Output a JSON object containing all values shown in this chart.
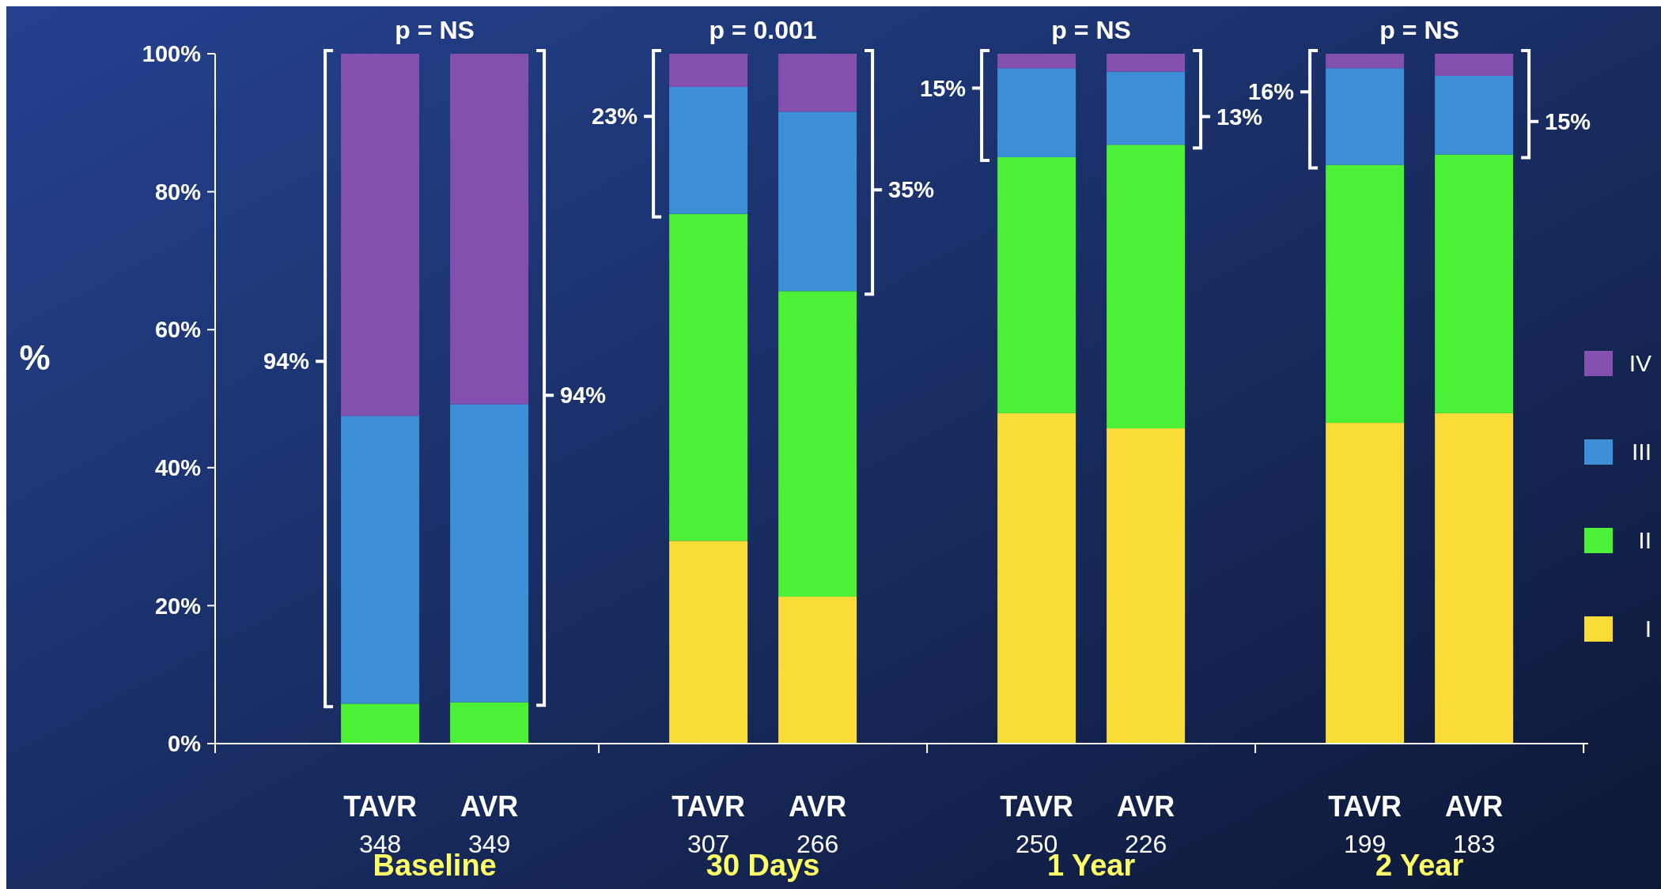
{
  "chart_data": {
    "type": "bar",
    "stacked": true,
    "ylabel": "%",
    "categories": [
      "TAVR 348",
      "AVR 349",
      "TAVR 307",
      "AVR 266",
      "TAVR 250",
      "AVR 226",
      "TAVR 199",
      "AVR 183"
    ],
    "series": [
      {
        "name": "I",
        "color": "#f9dc38",
        "values": [
          0,
          0,
          29.4,
          21.3,
          47.9,
          45.7,
          46.5,
          47.9
        ]
      },
      {
        "name": "II",
        "color": "#4cf035",
        "values": [
          5.8,
          6.0,
          47.4,
          44.3,
          37.1,
          41.1,
          37.4,
          37.5
        ]
      },
      {
        "name": "III",
        "color": "#3c8fd6",
        "values": [
          41.7,
          43.2,
          18.4,
          26.0,
          12.9,
          10.6,
          14.0,
          11.4
        ]
      },
      {
        "name": "IV",
        "color": "#8450b0",
        "values": [
          52.5,
          50.8,
          4.8,
          8.4,
          2.1,
          2.6,
          2.1,
          3.2
        ]
      }
    ],
    "ylim": [
      0,
      100
    ],
    "yticks": [
      {
        "value": 0,
        "label": "0%"
      },
      {
        "value": 20,
        "label": "20%"
      },
      {
        "value": 40,
        "label": "40%"
      },
      {
        "value": 60,
        "label": "60%"
      },
      {
        "value": 80,
        "label": "80%"
      },
      {
        "value": 100,
        "label": "100%"
      }
    ],
    "legend": "right",
    "grid": false,
    "annotations": [
      "p = NS",
      "p = 0.001",
      "p = NS",
      "p = NS",
      "Baseline",
      "30 Days",
      "1 Year",
      "2 Year",
      "94%",
      "94%",
      "23%",
      "35%",
      "15%",
      "13%",
      "16%",
      "15%"
    ]
  }
}
